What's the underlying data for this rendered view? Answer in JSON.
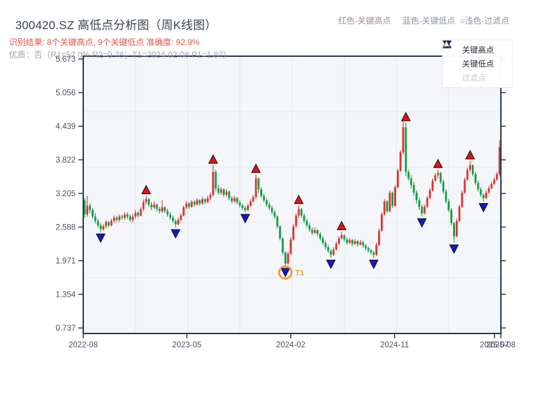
{
  "header": {
    "title": "300420.SZ 高低点分析图（周K线图）",
    "result_line": "识别结果: 8个关键高点, 9个关键低点  准确度: 92.9%",
    "quality_line": "优质：否（R1=52.0%  R2=0.78；T1=2024-02-08 P1=1.87）",
    "note_high": "红色-关键高点",
    "note_low": "蓝色-关键低点",
    "note_filter": "○浅色-过滤点",
    "note_gap1": "     ",
    "note_gap2": "  "
  },
  "legend_box": {
    "items": [
      {
        "label": "关键高点",
        "type": "high"
      },
      {
        "label": "关键低点",
        "type": "low"
      },
      {
        "label": "过滤点",
        "type": "filter"
      }
    ]
  },
  "colors": {
    "candle_up": "#d8342c",
    "candle_down": "#169a47",
    "high_marker": "#e01212",
    "low_marker": "#1616cc",
    "filter_marker": "#d8d2c6",
    "marker_edge": "#111111",
    "t1_accent": "#f59e2a",
    "plot_bg": "#f4f6f9",
    "grid": "#e4e8ee",
    "axis_border": "#2d3a4a",
    "tick_text": "#4a5260"
  },
  "chart_data": {
    "type": "candlestick",
    "title": "300420.SZ 高低点分析图（周K线图）",
    "frequency": "weekly",
    "ylim": [
      0.635,
      5.724
    ],
    "y_ticks": [
      "5.673",
      "5.056",
      "4.439",
      "3.822",
      "3.205",
      "2.588",
      "1.971",
      "1.354",
      "0.737"
    ],
    "x_ticks": [
      {
        "label": "2022-08",
        "i": 0
      },
      {
        "label": "2023-05",
        "i": 38.7
      },
      {
        "label": "2024-02",
        "i": 77.5
      },
      {
        "label": "2024-11",
        "i": 116.3
      },
      {
        "label": "2025-07",
        "i": 153.6
      },
      {
        "label": "2025-08",
        "i": 156
      }
    ],
    "grid_divisions": {
      "x": 8,
      "y": 5
    },
    "candles": [
      [
        3.08,
        3.12,
        2.76,
        2.82
      ],
      [
        2.82,
        3.16,
        2.78,
        2.98
      ],
      [
        2.98,
        3.02,
        2.84,
        2.9
      ],
      [
        2.9,
        2.94,
        2.74,
        2.78
      ],
      [
        2.78,
        2.84,
        2.66,
        2.7
      ],
      [
        2.7,
        2.74,
        2.58,
        2.62
      ],
      [
        2.62,
        2.66,
        2.5,
        2.55
      ],
      [
        2.55,
        2.64,
        2.52,
        2.6
      ],
      [
        2.6,
        2.72,
        2.56,
        2.68
      ],
      [
        2.68,
        2.7,
        2.58,
        2.62
      ],
      [
        2.62,
        2.74,
        2.6,
        2.7
      ],
      [
        2.7,
        2.8,
        2.66,
        2.76
      ],
      [
        2.76,
        2.8,
        2.68,
        2.72
      ],
      [
        2.72,
        2.82,
        2.68,
        2.78
      ],
      [
        2.78,
        2.82,
        2.72,
        2.76
      ],
      [
        2.76,
        2.86,
        2.72,
        2.82
      ],
      [
        2.82,
        2.86,
        2.74,
        2.78
      ],
      [
        2.78,
        2.82,
        2.68,
        2.72
      ],
      [
        2.72,
        2.82,
        2.68,
        2.78
      ],
      [
        2.78,
        2.9,
        2.74,
        2.85
      ],
      [
        2.85,
        2.88,
        2.76,
        2.8
      ],
      [
        2.8,
        2.96,
        2.78,
        2.92
      ],
      [
        2.92,
        3.1,
        2.88,
        3.05
      ],
      [
        3.05,
        3.16,
        3.0,
        3.1
      ],
      [
        3.1,
        3.12,
        2.96,
        3.0
      ],
      [
        3.0,
        3.05,
        2.9,
        2.95
      ],
      [
        2.95,
        3.06,
        2.92,
        3.0
      ],
      [
        3.0,
        3.02,
        2.88,
        2.92
      ],
      [
        2.92,
        2.96,
        2.84,
        2.88
      ],
      [
        2.88,
        3.08,
        2.85,
        2.95
      ],
      [
        2.95,
        2.97,
        2.85,
        2.88
      ],
      [
        2.88,
        2.92,
        2.78,
        2.82
      ],
      [
        2.82,
        2.86,
        2.72,
        2.76
      ],
      [
        2.76,
        2.8,
        2.66,
        2.7
      ],
      [
        2.7,
        2.73,
        2.58,
        2.64
      ],
      [
        2.64,
        2.76,
        2.62,
        2.72
      ],
      [
        2.72,
        2.84,
        2.7,
        2.8
      ],
      [
        2.8,
        2.98,
        2.78,
        2.95
      ],
      [
        2.95,
        3.06,
        2.92,
        3.02
      ],
      [
        3.02,
        3.05,
        2.92,
        2.96
      ],
      [
        2.96,
        3.08,
        2.94,
        3.05
      ],
      [
        3.05,
        3.08,
        2.96,
        3.0
      ],
      [
        3.0,
        3.12,
        2.98,
        3.08
      ],
      [
        3.08,
        3.1,
        2.98,
        3.02
      ],
      [
        3.02,
        3.14,
        3.0,
        3.1
      ],
      [
        3.1,
        3.12,
        3.01,
        3.05
      ],
      [
        3.05,
        3.16,
        3.02,
        3.12
      ],
      [
        3.12,
        3.22,
        3.08,
        3.18
      ],
      [
        3.18,
        3.72,
        3.15,
        3.6
      ],
      [
        3.6,
        3.64,
        3.24,
        3.3
      ],
      [
        3.3,
        3.36,
        3.18,
        3.22
      ],
      [
        3.22,
        3.32,
        3.18,
        3.28
      ],
      [
        3.28,
        3.3,
        3.14,
        3.18
      ],
      [
        3.18,
        3.28,
        3.15,
        3.24
      ],
      [
        3.24,
        3.26,
        3.08,
        3.12
      ],
      [
        3.12,
        3.16,
        3.02,
        3.06
      ],
      [
        3.06,
        3.16,
        3.03,
        3.12
      ],
      [
        3.12,
        3.14,
        3.0,
        3.04
      ],
      [
        3.04,
        3.08,
        2.94,
        2.98
      ],
      [
        2.98,
        3.02,
        2.9,
        2.94
      ],
      [
        2.94,
        2.98,
        2.86,
        2.9
      ],
      [
        2.9,
        3.02,
        2.88,
        2.98
      ],
      [
        2.98,
        3.1,
        2.96,
        3.06
      ],
      [
        3.06,
        3.18,
        3.04,
        3.14
      ],
      [
        3.14,
        3.55,
        3.1,
        3.48
      ],
      [
        3.48,
        3.5,
        3.22,
        3.28
      ],
      [
        3.28,
        3.32,
        3.12,
        3.16
      ],
      [
        3.16,
        3.2,
        3.04,
        3.08
      ],
      [
        3.08,
        3.12,
        2.96,
        3.0
      ],
      [
        3.0,
        3.04,
        2.9,
        2.94
      ],
      [
        2.94,
        2.98,
        2.82,
        2.86
      ],
      [
        2.86,
        2.9,
        2.74,
        2.78
      ],
      [
        2.78,
        2.8,
        2.56,
        2.6
      ],
      [
        2.6,
        2.62,
        2.34,
        2.38
      ],
      [
        2.38,
        2.4,
        2.08,
        2.12
      ],
      [
        2.12,
        2.14,
        1.87,
        1.92
      ],
      [
        1.92,
        2.14,
        1.9,
        2.1
      ],
      [
        2.1,
        2.4,
        2.08,
        2.36
      ],
      [
        2.36,
        2.64,
        2.34,
        2.6
      ],
      [
        2.6,
        2.84,
        2.58,
        2.8
      ],
      [
        2.8,
        2.98,
        2.76,
        2.92
      ],
      [
        2.92,
        2.94,
        2.76,
        2.8
      ],
      [
        2.8,
        2.84,
        2.66,
        2.7
      ],
      [
        2.7,
        2.74,
        2.58,
        2.62
      ],
      [
        2.62,
        2.66,
        2.5,
        2.54
      ],
      [
        2.54,
        2.58,
        2.44,
        2.48
      ],
      [
        2.48,
        2.58,
        2.46,
        2.53
      ],
      [
        2.53,
        2.55,
        2.42,
        2.46
      ],
      [
        2.46,
        2.5,
        2.34,
        2.38
      ],
      [
        2.38,
        2.42,
        2.26,
        2.3
      ],
      [
        2.3,
        2.34,
        2.18,
        2.22
      ],
      [
        2.22,
        2.26,
        2.11,
        2.15
      ],
      [
        2.15,
        2.18,
        2.02,
        2.08
      ],
      [
        2.08,
        2.22,
        2.06,
        2.18
      ],
      [
        2.18,
        2.32,
        2.16,
        2.28
      ],
      [
        2.28,
        2.42,
        2.26,
        2.38
      ],
      [
        2.38,
        2.5,
        2.36,
        2.44
      ],
      [
        2.44,
        2.46,
        2.32,
        2.36
      ],
      [
        2.36,
        2.4,
        2.26,
        2.3
      ],
      [
        2.3,
        2.39,
        2.28,
        2.35
      ],
      [
        2.35,
        2.37,
        2.24,
        2.28
      ],
      [
        2.28,
        2.37,
        2.26,
        2.33
      ],
      [
        2.33,
        2.35,
        2.23,
        2.27
      ],
      [
        2.27,
        2.35,
        2.25,
        2.31
      ],
      [
        2.31,
        2.33,
        2.21,
        2.25
      ],
      [
        2.25,
        2.28,
        2.16,
        2.2
      ],
      [
        2.2,
        2.23,
        2.12,
        2.16
      ],
      [
        2.16,
        2.19,
        2.08,
        2.12
      ],
      [
        2.12,
        2.15,
        2.02,
        2.08
      ],
      [
        2.08,
        2.3,
        2.06,
        2.26
      ],
      [
        2.26,
        2.56,
        2.24,
        2.52
      ],
      [
        2.52,
        2.86,
        2.5,
        2.82
      ],
      [
        2.82,
        3.1,
        2.8,
        3.06
      ],
      [
        3.06,
        3.08,
        2.84,
        2.88
      ],
      [
        2.88,
        3.26,
        2.86,
        3.22
      ],
      [
        3.22,
        3.24,
        2.94,
        2.98
      ],
      [
        2.98,
        3.36,
        2.96,
        3.32
      ],
      [
        3.32,
        3.66,
        3.3,
        3.62
      ],
      [
        3.62,
        4.0,
        3.6,
        3.96
      ],
      [
        3.96,
        4.59,
        3.92,
        4.42
      ],
      [
        4.42,
        4.5,
        3.52,
        3.6
      ],
      [
        3.6,
        3.64,
        3.44,
        3.48
      ],
      [
        3.48,
        3.54,
        3.3,
        3.36
      ],
      [
        3.36,
        3.42,
        3.16,
        3.22
      ],
      [
        3.22,
        3.26,
        3.02,
        3.08
      ],
      [
        3.08,
        3.12,
        2.9,
        2.96
      ],
      [
        2.96,
        3.0,
        2.78,
        2.84
      ],
      [
        2.84,
        3.0,
        2.82,
        2.96
      ],
      [
        2.96,
        3.16,
        2.94,
        3.12
      ],
      [
        3.12,
        3.3,
        3.1,
        3.26
      ],
      [
        3.26,
        3.48,
        3.24,
        3.44
      ],
      [
        3.44,
        3.58,
        3.42,
        3.54
      ],
      [
        3.54,
        3.64,
        3.48,
        3.58
      ],
      [
        3.58,
        3.6,
        3.38,
        3.42
      ],
      [
        3.42,
        3.46,
        3.2,
        3.24
      ],
      [
        3.24,
        3.28,
        3.02,
        3.06
      ],
      [
        3.06,
        3.1,
        2.86,
        2.9
      ],
      [
        2.9,
        2.94,
        2.62,
        2.66
      ],
      [
        2.66,
        2.68,
        2.3,
        2.42
      ],
      [
        2.42,
        2.74,
        2.4,
        2.7
      ],
      [
        2.7,
        3.0,
        2.68,
        2.96
      ],
      [
        2.96,
        3.26,
        2.94,
        3.22
      ],
      [
        3.22,
        3.5,
        3.2,
        3.46
      ],
      [
        3.46,
        3.68,
        3.44,
        3.64
      ],
      [
        3.64,
        3.8,
        3.6,
        3.72
      ],
      [
        3.72,
        3.74,
        3.52,
        3.56
      ],
      [
        3.56,
        3.6,
        3.36,
        3.4
      ],
      [
        3.4,
        3.44,
        3.24,
        3.28
      ],
      [
        3.28,
        3.32,
        3.14,
        3.18
      ],
      [
        3.18,
        3.2,
        3.06,
        3.12
      ],
      [
        3.12,
        3.26,
        3.1,
        3.22
      ],
      [
        3.22,
        3.34,
        3.2,
        3.3
      ],
      [
        3.3,
        3.42,
        3.28,
        3.38
      ],
      [
        3.38,
        3.5,
        3.36,
        3.46
      ],
      [
        3.46,
        3.6,
        3.44,
        3.56
      ],
      [
        3.56,
        4.18,
        3.52,
        4.05
      ]
    ],
    "key_highs": [
      23,
      48,
      64,
      80,
      96,
      120,
      132,
      144
    ],
    "key_lows": [
      6,
      34,
      60,
      75,
      92,
      108,
      126,
      138,
      149
    ],
    "t1": {
      "index": 75,
      "label": "T1"
    },
    "legend_entries": [
      "关键高点",
      "关键低点",
      "过滤点"
    ]
  }
}
